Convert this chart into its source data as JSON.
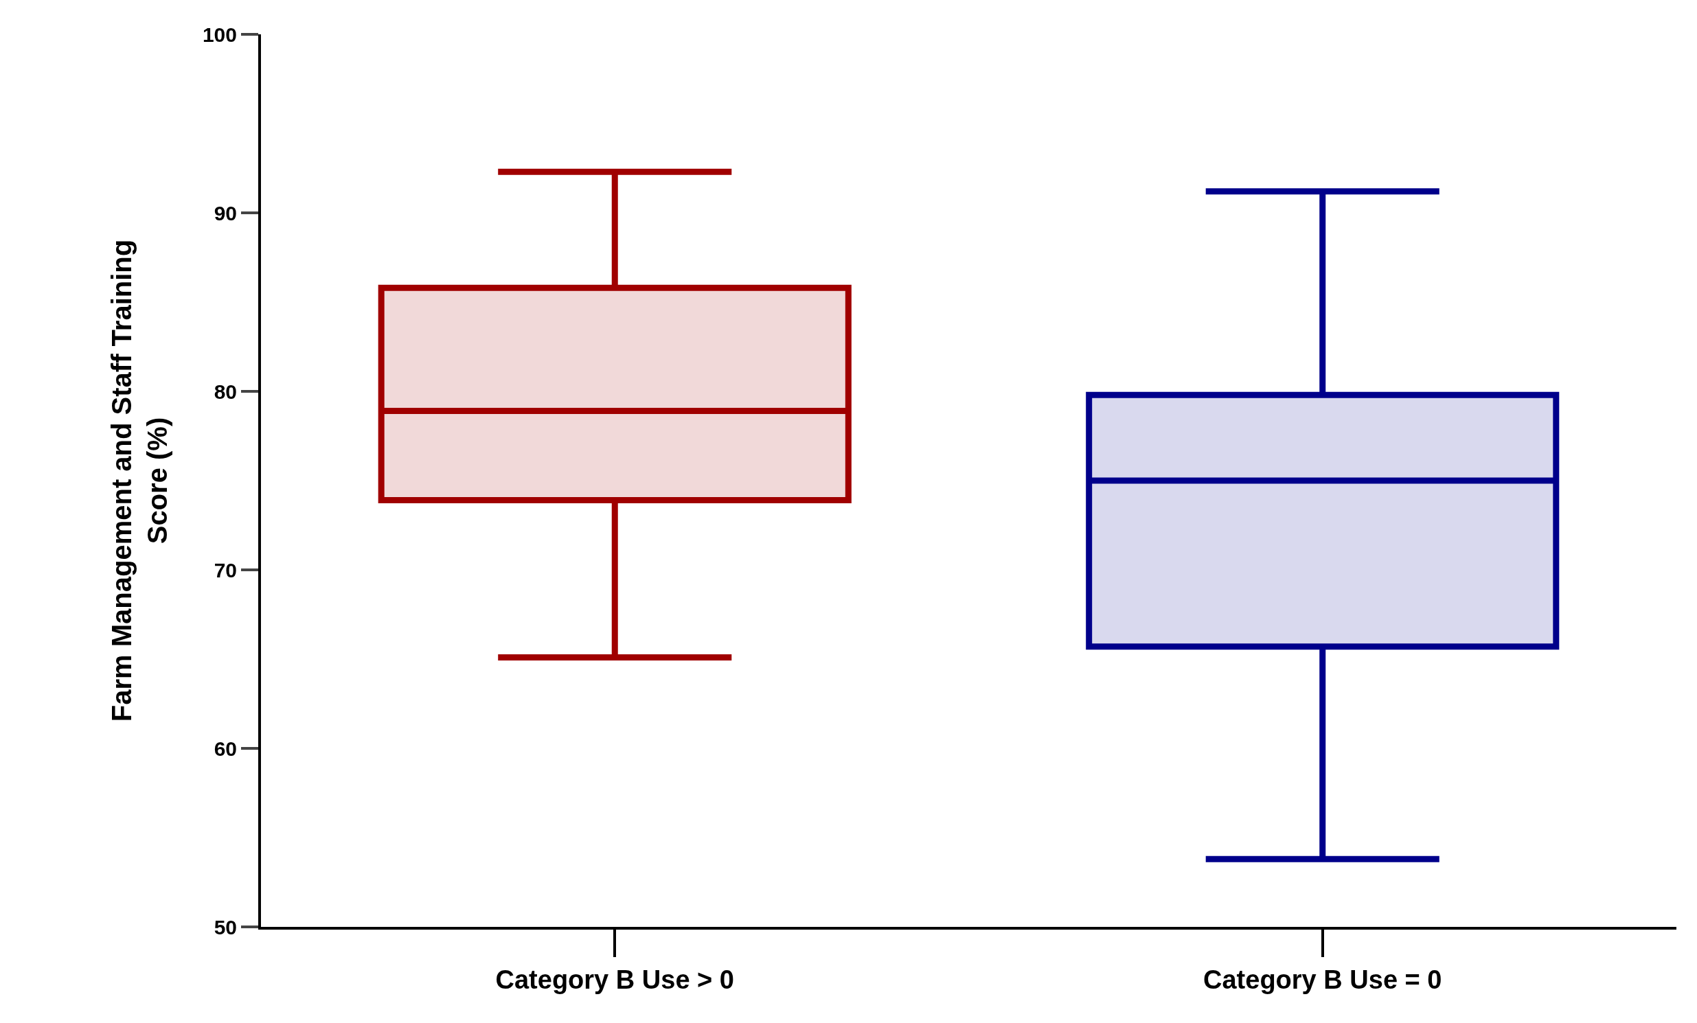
{
  "chart_data": {
    "type": "box",
    "ylabel": "Farm Management and Staff Training Score (%)",
    "categories": [
      "Category B Use > 0",
      "Category B Use = 0"
    ],
    "series": [
      {
        "color": "#a00000",
        "boxes": [
          {
            "low": 65.1,
            "q1": 73.9,
            "median": 78.9,
            "q3": 85.8,
            "high": 92.3
          },
          null
        ]
      },
      {
        "color": "#00008b",
        "boxes": [
          null,
          {
            "low": 53.8,
            "q1": 65.7,
            "median": 75.0,
            "q3": 79.8,
            "high": 91.2
          }
        ]
      }
    ],
    "ylim": [
      50,
      100
    ],
    "yticks": [
      50,
      60,
      70,
      80,
      90,
      100
    ]
  }
}
